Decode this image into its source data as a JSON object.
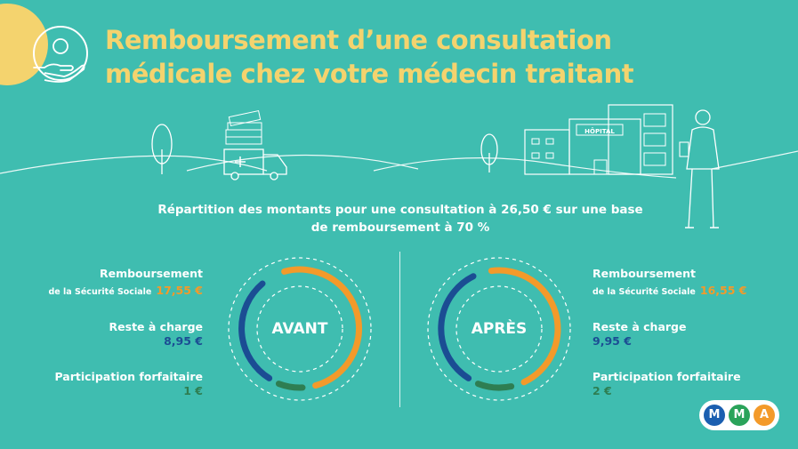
{
  "header": {
    "title_line1": "Remboursement d’une consultation",
    "title_line2": "médicale chez votre médecin traitant",
    "icon": "hand-coin-icon"
  },
  "illustration": {
    "hospital_sign": "HÔPITAL",
    "icons": [
      "cash-stack-icon",
      "ambulance-icon",
      "hospital-icon",
      "nurse-icon",
      "tree-icon"
    ]
  },
  "subtitle": {
    "line1": "Répartition des montants pour une consultation à 26,50 € sur une base",
    "line2": "de remboursement à 70 %"
  },
  "before": {
    "ring_label": "AVANT",
    "secu_label": "Remboursement",
    "secu_sublabel": "de la Sécurité Sociale",
    "secu_value": "17,55 €",
    "reste_label": "Reste à charge",
    "reste_value": "8,95 €",
    "participation_label": "Participation forfaitaire",
    "participation_value": "1 €"
  },
  "after": {
    "ring_label": "APRÈS",
    "secu_label": "Remboursement",
    "secu_sublabel": "de la Sécurité Sociale",
    "secu_value": "16,55 €",
    "reste_label": "Reste à charge",
    "reste_value": "9,95 €",
    "participation_label": "Participation forfaitaire",
    "participation_value": "2 €"
  },
  "logo": {
    "letters": [
      "M",
      "M",
      "A"
    ],
    "colors": [
      "#1b5fb0",
      "#2aa35a",
      "#f39a2a"
    ]
  },
  "colors": {
    "background": "#3fbdb0",
    "title": "#f4d36e",
    "secu": "#f39a2a",
    "reste": "#1b4d93",
    "participation": "#2e7e52"
  }
}
